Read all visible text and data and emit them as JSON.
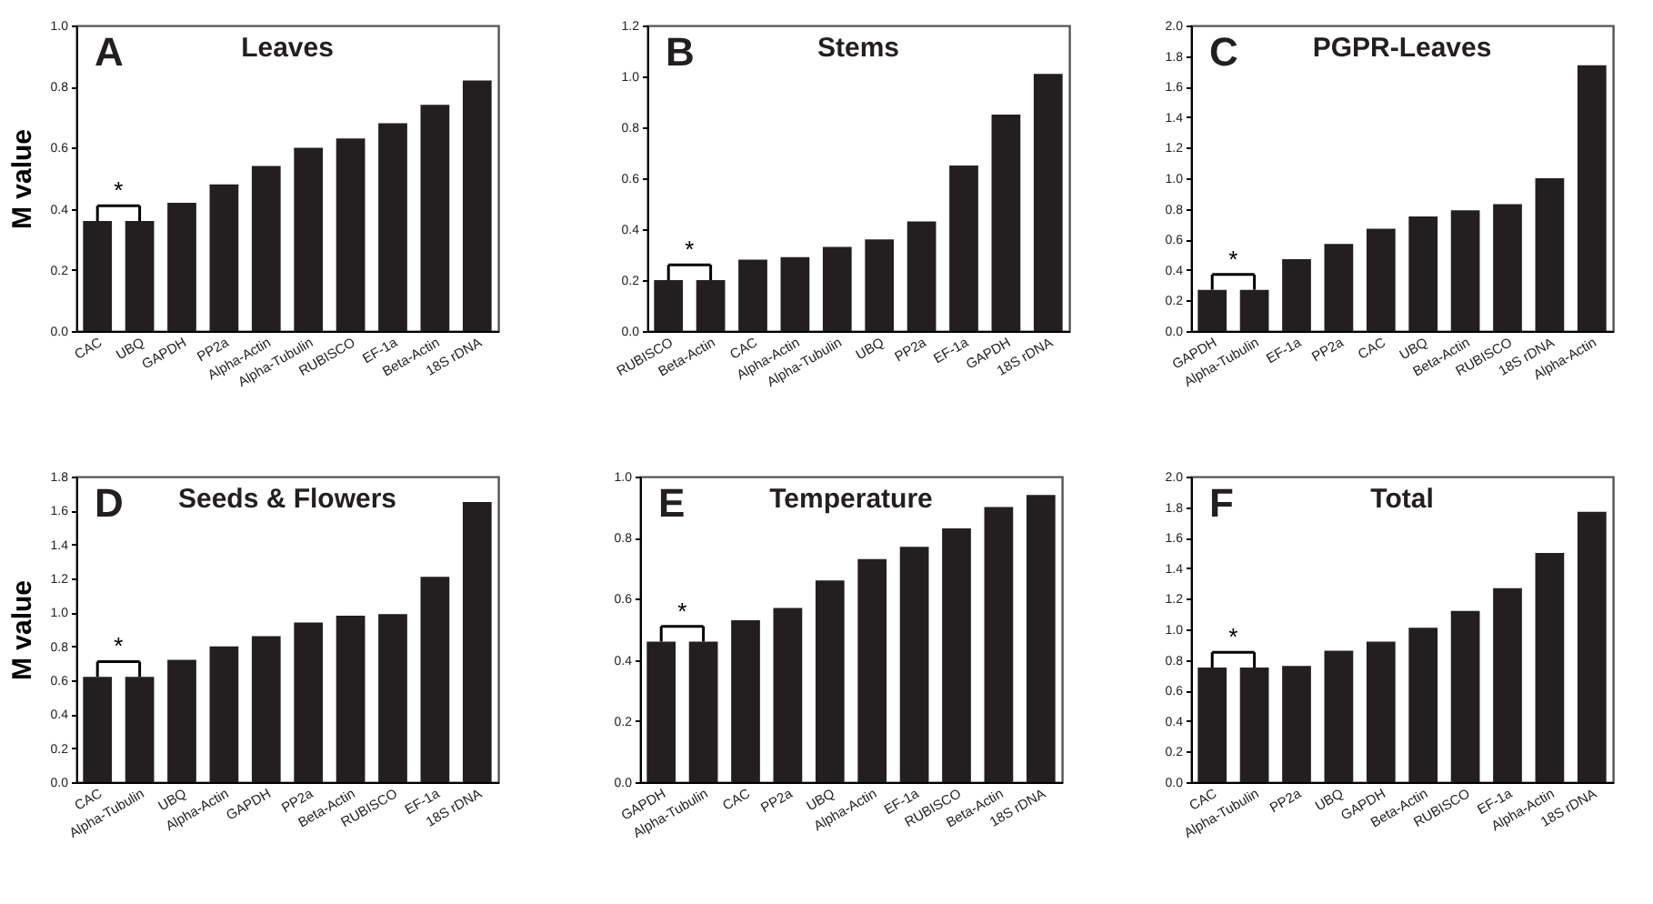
{
  "chart_data": [
    {
      "type": "bar",
      "title": "Leaves",
      "ylabel": "M value",
      "annotations": [
        "A",
        "*"
      ],
      "color": "#231f20",
      "categories": [
        "CAC",
        "UBQ",
        "GAPDH",
        "PP2a",
        "Alpha-Actin",
        "Alpha-Tubulin",
        "RUBISCO",
        "EF-1a",
        "Beta-Actin",
        "18S rDNA"
      ],
      "values": [
        0.36,
        0.36,
        0.42,
        0.48,
        0.54,
        0.6,
        0.63,
        0.68,
        0.74,
        0.82
      ],
      "ylim": [
        0,
        1
      ],
      "yticks": [
        {
          "value": 0,
          "label": "0.0"
        },
        0.2,
        0.4,
        0.6,
        0.8,
        {
          "value": 1,
          "label": "1.0"
        }
      ],
      "grid": false
    },
    {
      "type": "bar",
      "title": "Stems",
      "annotations": [
        "B",
        "*"
      ],
      "color": "#231f20",
      "categories": [
        "RUBISCO",
        "Beta-Actin",
        "CAC",
        "Alpha-Actin",
        "Alpha-Tubulin",
        "UBQ",
        "PP2a",
        "EF-1a",
        "GAPDH",
        "18S rDNA"
      ],
      "values": [
        0.2,
        0.2,
        0.28,
        0.29,
        0.33,
        0.36,
        0.43,
        0.65,
        0.85,
        1.01
      ],
      "ylim": [
        0,
        1.2
      ],
      "yticks": [
        {
          "value": 0,
          "label": "0.0"
        },
        0.2,
        0.4,
        0.6,
        0.8,
        {
          "value": 1,
          "label": "1.0"
        },
        1.2
      ],
      "grid": false
    },
    {
      "type": "bar",
      "title": "PGPR-Leaves",
      "annotations": [
        "C",
        "*"
      ],
      "color": "#231f20",
      "categories": [
        "GAPDH",
        "Alpha-Tubulin",
        "EF-1a",
        "PP2a",
        "CAC",
        "UBQ",
        "Beta-Actin",
        "RUBISCO",
        "18S rDNA",
        "Alpha-Actin"
      ],
      "values": [
        0.27,
        0.27,
        0.47,
        0.57,
        0.67,
        0.75,
        0.79,
        0.83,
        1.0,
        1.74
      ],
      "ylim": [
        0,
        2
      ],
      "yticks": [
        {
          "value": 0,
          "label": "0.0"
        },
        0.2,
        0.4,
        0.6,
        0.8,
        {
          "value": 1,
          "label": "1.0"
        },
        1.2,
        1.4,
        1.6,
        1.8,
        {
          "value": 2,
          "label": "2.0"
        }
      ],
      "grid": false
    },
    {
      "type": "bar",
      "title": "Seeds & Flowers",
      "ylabel": "M value",
      "annotations": [
        "D",
        "*"
      ],
      "color": "#231f20",
      "categories": [
        "CAC",
        "Alpha-Tubulin",
        "UBQ",
        "Alpha-Actin",
        "GAPDH",
        "PP2a",
        "Beta-Actin",
        "RUBISCO",
        "EF-1a",
        "18S rDNA"
      ],
      "values": [
        0.62,
        0.62,
        0.72,
        0.8,
        0.86,
        0.94,
        0.98,
        0.99,
        1.21,
        1.65
      ],
      "ylim": [
        0,
        1.8
      ],
      "yticks": [
        {
          "value": 0,
          "label": "0.0"
        },
        0.2,
        0.4,
        0.6,
        0.8,
        {
          "value": 1,
          "label": "1.0"
        },
        1.2,
        1.4,
        1.6,
        1.8
      ],
      "grid": false
    },
    {
      "type": "bar",
      "title": "Temperature",
      "annotations": [
        "E",
        "*"
      ],
      "color": "#231f20",
      "categories": [
        "GAPDH",
        "Alpha-Tubulin",
        "CAC",
        "PP2a",
        "UBQ",
        "Alpha-Actin",
        "EF-1a",
        "RUBISCO",
        "Beta-Actin",
        "18S rDNA"
      ],
      "values": [
        0.46,
        0.46,
        0.53,
        0.57,
        0.66,
        0.73,
        0.77,
        0.83,
        0.9,
        0.94
      ],
      "ylim": [
        0,
        1
      ],
      "yticks": [
        {
          "value": 0,
          "label": "0.0"
        },
        0.2,
        0.4,
        0.6,
        0.8,
        {
          "value": 1,
          "label": "1.0"
        }
      ],
      "grid": false
    },
    {
      "type": "bar",
      "title": "Total",
      "annotations": [
        "F",
        "*"
      ],
      "color": "#231f20",
      "categories": [
        "CAC",
        "Alpha-Tubulin",
        "PP2a",
        "UBQ",
        "GAPDH",
        "Beta-Actin",
        "RUBISCO",
        "EF-1a",
        "Alpha-Actin",
        "18S rDNA"
      ],
      "values": [
        0.75,
        0.75,
        0.76,
        0.86,
        0.92,
        1.01,
        1.12,
        1.27,
        1.5,
        1.77
      ],
      "ylim": [
        0,
        2
      ],
      "yticks": [
        {
          "value": 0,
          "label": "0.0"
        },
        0.2,
        0.4,
        0.6,
        0.8,
        {
          "value": 1,
          "label": "1.0"
        },
        1.2,
        1.4,
        1.6,
        1.8,
        {
          "value": 2,
          "label": "2.0"
        }
      ],
      "grid": false
    }
  ]
}
